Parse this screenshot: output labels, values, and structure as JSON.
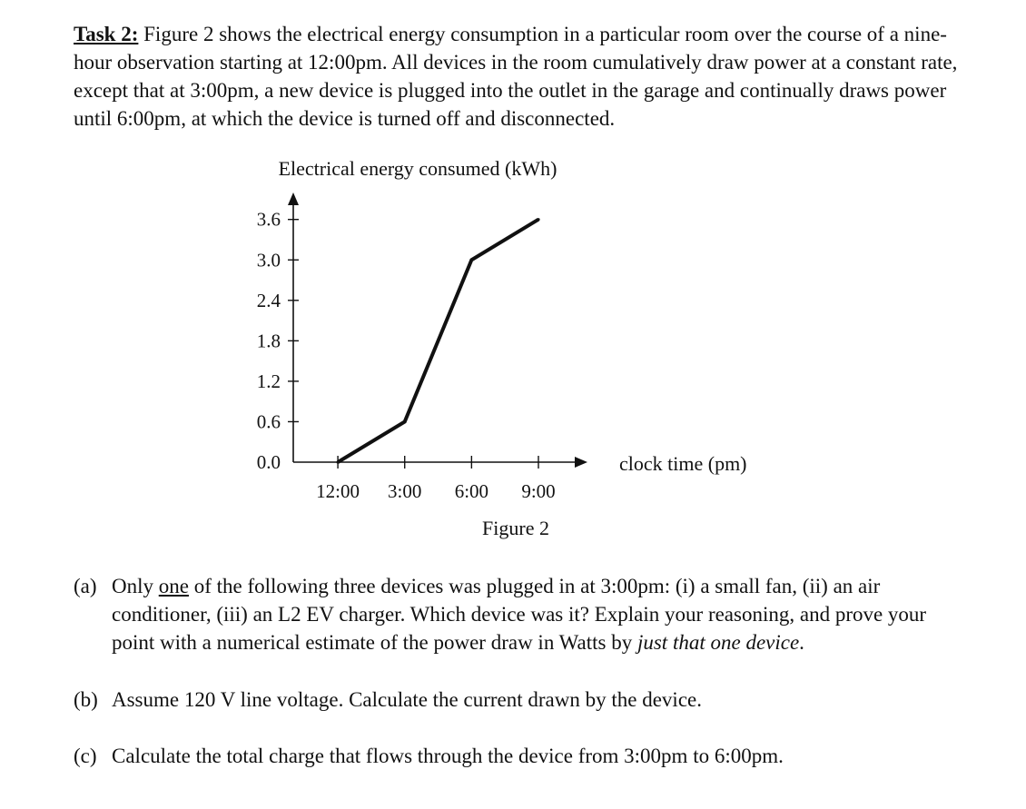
{
  "task": {
    "label": "Task 2:",
    "intro": " Figure 2 shows the electrical energy consumption in a particular room over the course of a nine-hour observation starting at 12:00pm. All devices in the room cumulatively draw power at a constant rate, except that at 3:00pm, a new device is plugged into the outlet in the garage and continually draws power until 6:00pm, at which the device is turned off and disconnected."
  },
  "figure": {
    "caption": "Figure 2"
  },
  "chart_data": {
    "type": "line",
    "ylabel": "Electrical energy consumed (kWh)",
    "xlabel": "clock time (pm)",
    "x_ticks": [
      "12:00",
      "3:00",
      "6:00",
      "9:00"
    ],
    "y_ticks": [
      "0.0",
      "0.6",
      "1.2",
      "1.8",
      "2.4",
      "3.0",
      "3.6"
    ],
    "y_tick_values": [
      0.0,
      0.6,
      1.2,
      1.8,
      2.4,
      3.0,
      3.6
    ],
    "x": [
      0,
      3,
      6,
      9
    ],
    "y": [
      0.0,
      0.6,
      3.0,
      3.6
    ],
    "xlim": [
      -2,
      11.2
    ],
    "ylim": [
      0,
      4.0
    ],
    "grid": false,
    "series": [
      {
        "x": [
          0,
          3,
          6,
          9
        ],
        "y": [
          0.0,
          0.6,
          3.0,
          3.6
        ]
      }
    ]
  },
  "questions": {
    "a": {
      "label": "(a)",
      "t1": "Only ",
      "t2": "one",
      "t3": " of the following three devices was plugged in at 3:00pm: (i) a small fan, (ii) an air conditioner, (iii) an L2 EV charger. Which device was it? Explain your reasoning, and prove your point with a numerical estimate of the power draw in Watts by ",
      "t4": "just that one device",
      "t5": "."
    },
    "b": {
      "label": "(b)",
      "text": "Assume 120 V line voltage. Calculate the current drawn by the device."
    },
    "c": {
      "label": "(c)",
      "text": "Calculate the total charge that flows through the device from 3:00pm to 6:00pm."
    }
  }
}
